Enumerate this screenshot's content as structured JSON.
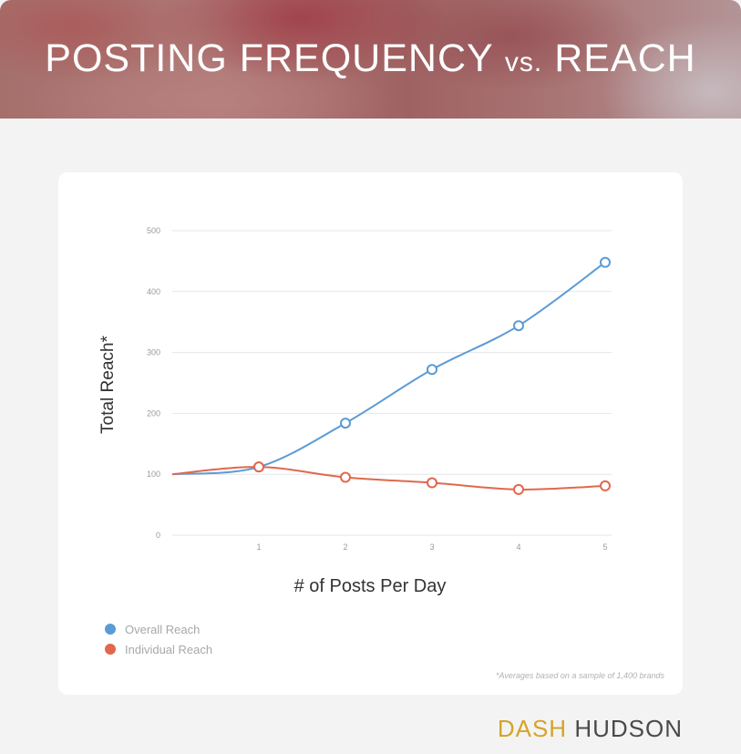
{
  "title_main": "POSTING FREQUENCY",
  "title_vs": "vs.",
  "title_end": "REACH",
  "footnote": "*Averages based on a sample of 1,400 brands",
  "brand": {
    "part1": "DASH",
    "part2": "HUDSON"
  },
  "colors": {
    "overall": "#5b9bd5",
    "individual": "#e0684e",
    "brand_accent": "#d4a42a"
  },
  "chart_data": {
    "type": "line",
    "xlabel": "# of Posts Per Day",
    "ylabel": "Total Reach*",
    "x_ticks": [
      "1",
      "2",
      "3",
      "4",
      "5"
    ],
    "y_ticks": [
      "0",
      "100",
      "200",
      "300",
      "400",
      "500"
    ],
    "ylim": [
      0,
      500
    ],
    "xlim": [
      0,
      5
    ],
    "grid": true,
    "legend_position": "bottom-left",
    "series": [
      {
        "name": "Overall Reach",
        "x": [
          0,
          1,
          2,
          3,
          4,
          5
        ],
        "values": [
          100,
          112,
          184,
          272,
          344,
          448
        ],
        "markers": [
          1,
          2,
          3,
          4,
          5
        ]
      },
      {
        "name": "Individual Reach",
        "x": [
          0,
          1,
          2,
          3,
          4,
          5
        ],
        "values": [
          100,
          112,
          95,
          86,
          75,
          81
        ],
        "markers": [
          1,
          2,
          3,
          4,
          5
        ]
      }
    ]
  }
}
